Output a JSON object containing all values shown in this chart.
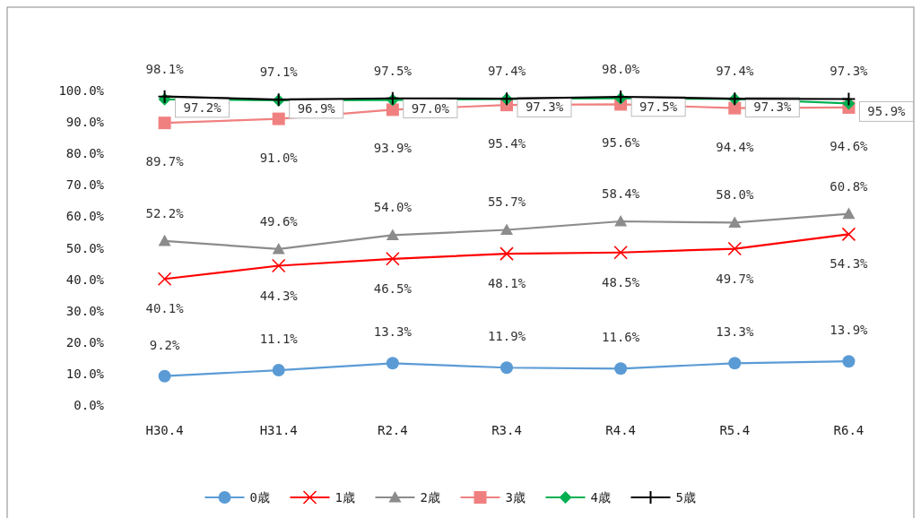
{
  "chart_data": {
    "type": "line",
    "categories": [
      "H30.4",
      "H31.4",
      "R2.4",
      "R3.4",
      "R4.4",
      "R5.4",
      "R6.4"
    ],
    "ylim": [
      0,
      100
    ],
    "yticks": [
      {
        "value": 0,
        "label": "0.0%"
      },
      {
        "value": 10,
        "label": "10.0%"
      },
      {
        "value": 20,
        "label": "20.0%"
      },
      {
        "value": 30,
        "label": "30.0%"
      },
      {
        "value": 40,
        "label": "40.0%"
      },
      {
        "value": 50,
        "label": "50.0%"
      },
      {
        "value": 60,
        "label": "60.0%"
      },
      {
        "value": 70,
        "label": "70.0%"
      },
      {
        "value": 80,
        "label": "80.0%"
      },
      {
        "value": 90,
        "label": "90.0%"
      },
      {
        "value": 100,
        "label": "100.0%"
      }
    ],
    "grid": false,
    "legend": "bottom",
    "series": [
      {
        "name": "0歳",
        "color": "#5b9bd5",
        "marker": "circle",
        "values": [
          9.2,
          11.1,
          13.3,
          11.9,
          11.6,
          13.3,
          13.9
        ],
        "value_labels": [
          "9.2%",
          "11.1%",
          "13.3%",
          "11.9%",
          "11.6%",
          "13.3%",
          "13.9%"
        ]
      },
      {
        "name": "1歳",
        "color": "#ff0000",
        "marker": "cross",
        "values": [
          40.1,
          44.3,
          46.5,
          48.1,
          48.5,
          49.7,
          54.3
        ],
        "value_labels": [
          "40.1%",
          "44.3%",
          "46.5%",
          "48.1%",
          "48.5%",
          "49.7%",
          "54.3%"
        ]
      },
      {
        "name": "2歳",
        "color": "#8c8c8c",
        "marker": "triangle",
        "values": [
          52.2,
          49.6,
          54.0,
          55.7,
          58.4,
          58.0,
          60.8
        ],
        "value_labels": [
          "52.2%",
          "49.6%",
          "54.0%",
          "55.7%",
          "58.4%",
          "58.0%",
          "60.8%"
        ]
      },
      {
        "name": "3歳",
        "color": "#f08080",
        "marker": "square",
        "values": [
          89.7,
          91.0,
          93.9,
          95.4,
          95.6,
          94.4,
          94.6
        ],
        "value_labels": [
          "89.7%",
          "91.0%",
          "93.9%",
          "95.4%",
          "95.6%",
          "94.4%",
          "94.6%"
        ]
      },
      {
        "name": "4歳",
        "color": "#00b050",
        "marker": "diamond",
        "values": [
          97.2,
          96.9,
          97.0,
          97.3,
          97.5,
          97.3,
          95.9
        ],
        "value_labels": [
          "97.2%",
          "96.9%",
          "97.0%",
          "97.3%",
          "97.5%",
          "97.3%",
          "95.9%"
        ]
      },
      {
        "name": "5歳",
        "color": "#000000",
        "marker": "plus",
        "values": [
          98.1,
          97.1,
          97.5,
          97.4,
          98.0,
          97.4,
          97.3
        ],
        "value_labels": [
          "98.1%",
          "97.1%",
          "97.5%",
          "97.4%",
          "98.0%",
          "97.4%",
          "97.3%"
        ]
      }
    ]
  }
}
